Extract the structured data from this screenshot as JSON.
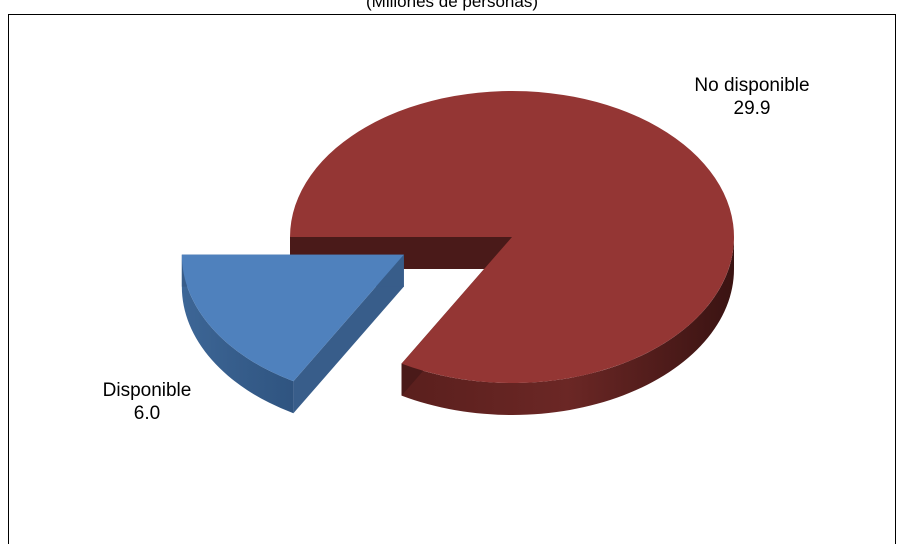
{
  "chart_data": {
    "type": "pie",
    "subtitle": "(Millones de personas)",
    "slices": [
      {
        "label": "No disponible",
        "value": 29.9,
        "value_label": "29.9",
        "color": "#943634",
        "side_color": "#4a1a19",
        "exploded": false
      },
      {
        "label": "Disponible",
        "value": 6.0,
        "value_label": "6.0",
        "color": "#4f81bd",
        "side_color": "#385d8a",
        "exploded": true
      }
    ]
  }
}
